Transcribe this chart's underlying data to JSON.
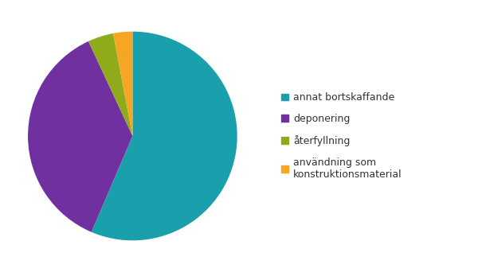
{
  "labels": [
    "annat bortskaffande",
    "deponering",
    "återfyllning",
    "användning som\nkonstruktionsmaterial"
  ],
  "values": [
    57,
    37,
    4,
    3
  ],
  "colors": [
    "#1a9fad",
    "#7030a0",
    "#8faa1b",
    "#f5a623"
  ],
  "startangle": 90,
  "legend_labels": [
    "annat bortskaffande",
    "deponering",
    "återfyllning",
    "användning som\nkonstruktionsmaterial"
  ],
  "background_color": "#ffffff",
  "legend_fontsize": 9,
  "figsize": [
    6.05,
    3.42
  ],
  "dpi": 100
}
